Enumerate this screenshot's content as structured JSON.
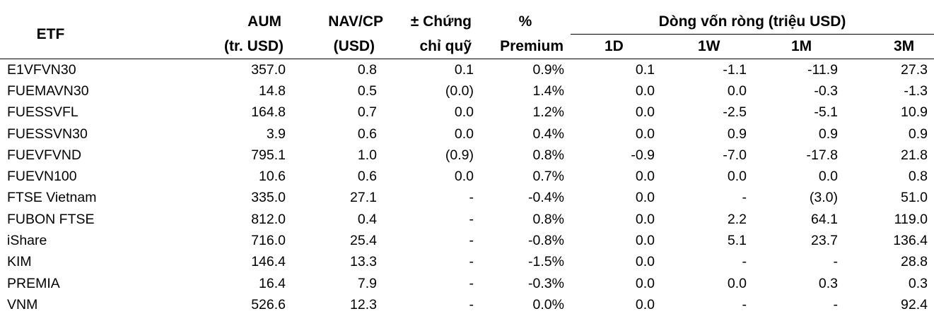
{
  "headers": {
    "etf": "ETF",
    "aum": [
      "AUM",
      "(tr. USD)"
    ],
    "nav": [
      "NAV/CP",
      "(USD)"
    ],
    "chung": [
      "± Chứng",
      "chỉ quỹ"
    ],
    "premium": [
      "%",
      "Premium"
    ],
    "flow_group": "Dòng vốn ròng (triệu USD)",
    "flow_periods": [
      "1D",
      "1W",
      "1M",
      "3M"
    ]
  },
  "rows": [
    {
      "etf": "E1VFVN30",
      "aum": "357.0",
      "nav": "0.8",
      "chung": "0.1",
      "premium": "0.9%",
      "d1": "0.1",
      "w1": "-1.1",
      "m1": "-11.9",
      "m3": "27.3"
    },
    {
      "etf": "FUEMAVN30",
      "aum": "14.8",
      "nav": "0.5",
      "chung": "(0.0)",
      "premium": "1.4%",
      "d1": "0.0",
      "w1": "0.0",
      "m1": "-0.3",
      "m3": "-1.3"
    },
    {
      "etf": "FUESSVFL",
      "aum": "164.8",
      "nav": "0.7",
      "chung": "0.0",
      "premium": "1.2%",
      "d1": "0.0",
      "w1": "-2.5",
      "m1": "-5.1",
      "m3": "10.9"
    },
    {
      "etf": "FUESSVN30",
      "aum": "3.9",
      "nav": "0.6",
      "chung": "0.0",
      "premium": "0.4%",
      "d1": "0.0",
      "w1": "0.9",
      "m1": "0.9",
      "m3": "0.9"
    },
    {
      "etf": "FUEVFVND",
      "aum": "795.1",
      "nav": "1.0",
      "chung": "(0.9)",
      "premium": "0.8%",
      "d1": "-0.9",
      "w1": "-7.0",
      "m1": "-17.8",
      "m3": "21.8"
    },
    {
      "etf": "FUEVN100",
      "aum": "10.6",
      "nav": "0.6",
      "chung": "0.0",
      "premium": "0.7%",
      "d1": "0.0",
      "w1": "0.0",
      "m1": "0.0",
      "m3": "0.8"
    },
    {
      "etf": "FTSE Vietnam",
      "aum": "335.0",
      "nav": "27.1",
      "chung": "-",
      "premium": "-0.4%",
      "d1": "0.0",
      "w1": "-",
      "m1": "(3.0)",
      "m3": "51.0"
    },
    {
      "etf": "FUBON FTSE",
      "aum": "812.0",
      "nav": "0.4",
      "chung": "-",
      "premium": "0.8%",
      "d1": "0.0",
      "w1": "2.2",
      "m1": "64.1",
      "m3": "119.0"
    },
    {
      "etf": "iShare",
      "aum": "716.0",
      "nav": "25.4",
      "chung": "-",
      "premium": "-0.8%",
      "d1": "0.0",
      "w1": "5.1",
      "m1": "23.7",
      "m3": "136.4"
    },
    {
      "etf": "KIM",
      "aum": "146.4",
      "nav": "13.3",
      "chung": "-",
      "premium": "-1.5%",
      "d1": "0.0",
      "w1": "-",
      "m1": "-",
      "m3": "28.8"
    },
    {
      "etf": "PREMIA",
      "aum": "16.4",
      "nav": "7.9",
      "chung": "-",
      "premium": "-0.3%",
      "d1": "0.0",
      "w1": "0.0",
      "m1": "0.3",
      "m3": "0.3"
    },
    {
      "etf": "VNM",
      "aum": "526.6",
      "nav": "12.3",
      "chung": "-",
      "premium": "0.0%",
      "d1": "0.0",
      "w1": "-",
      "m1": "-",
      "m3": "92.4"
    }
  ]
}
